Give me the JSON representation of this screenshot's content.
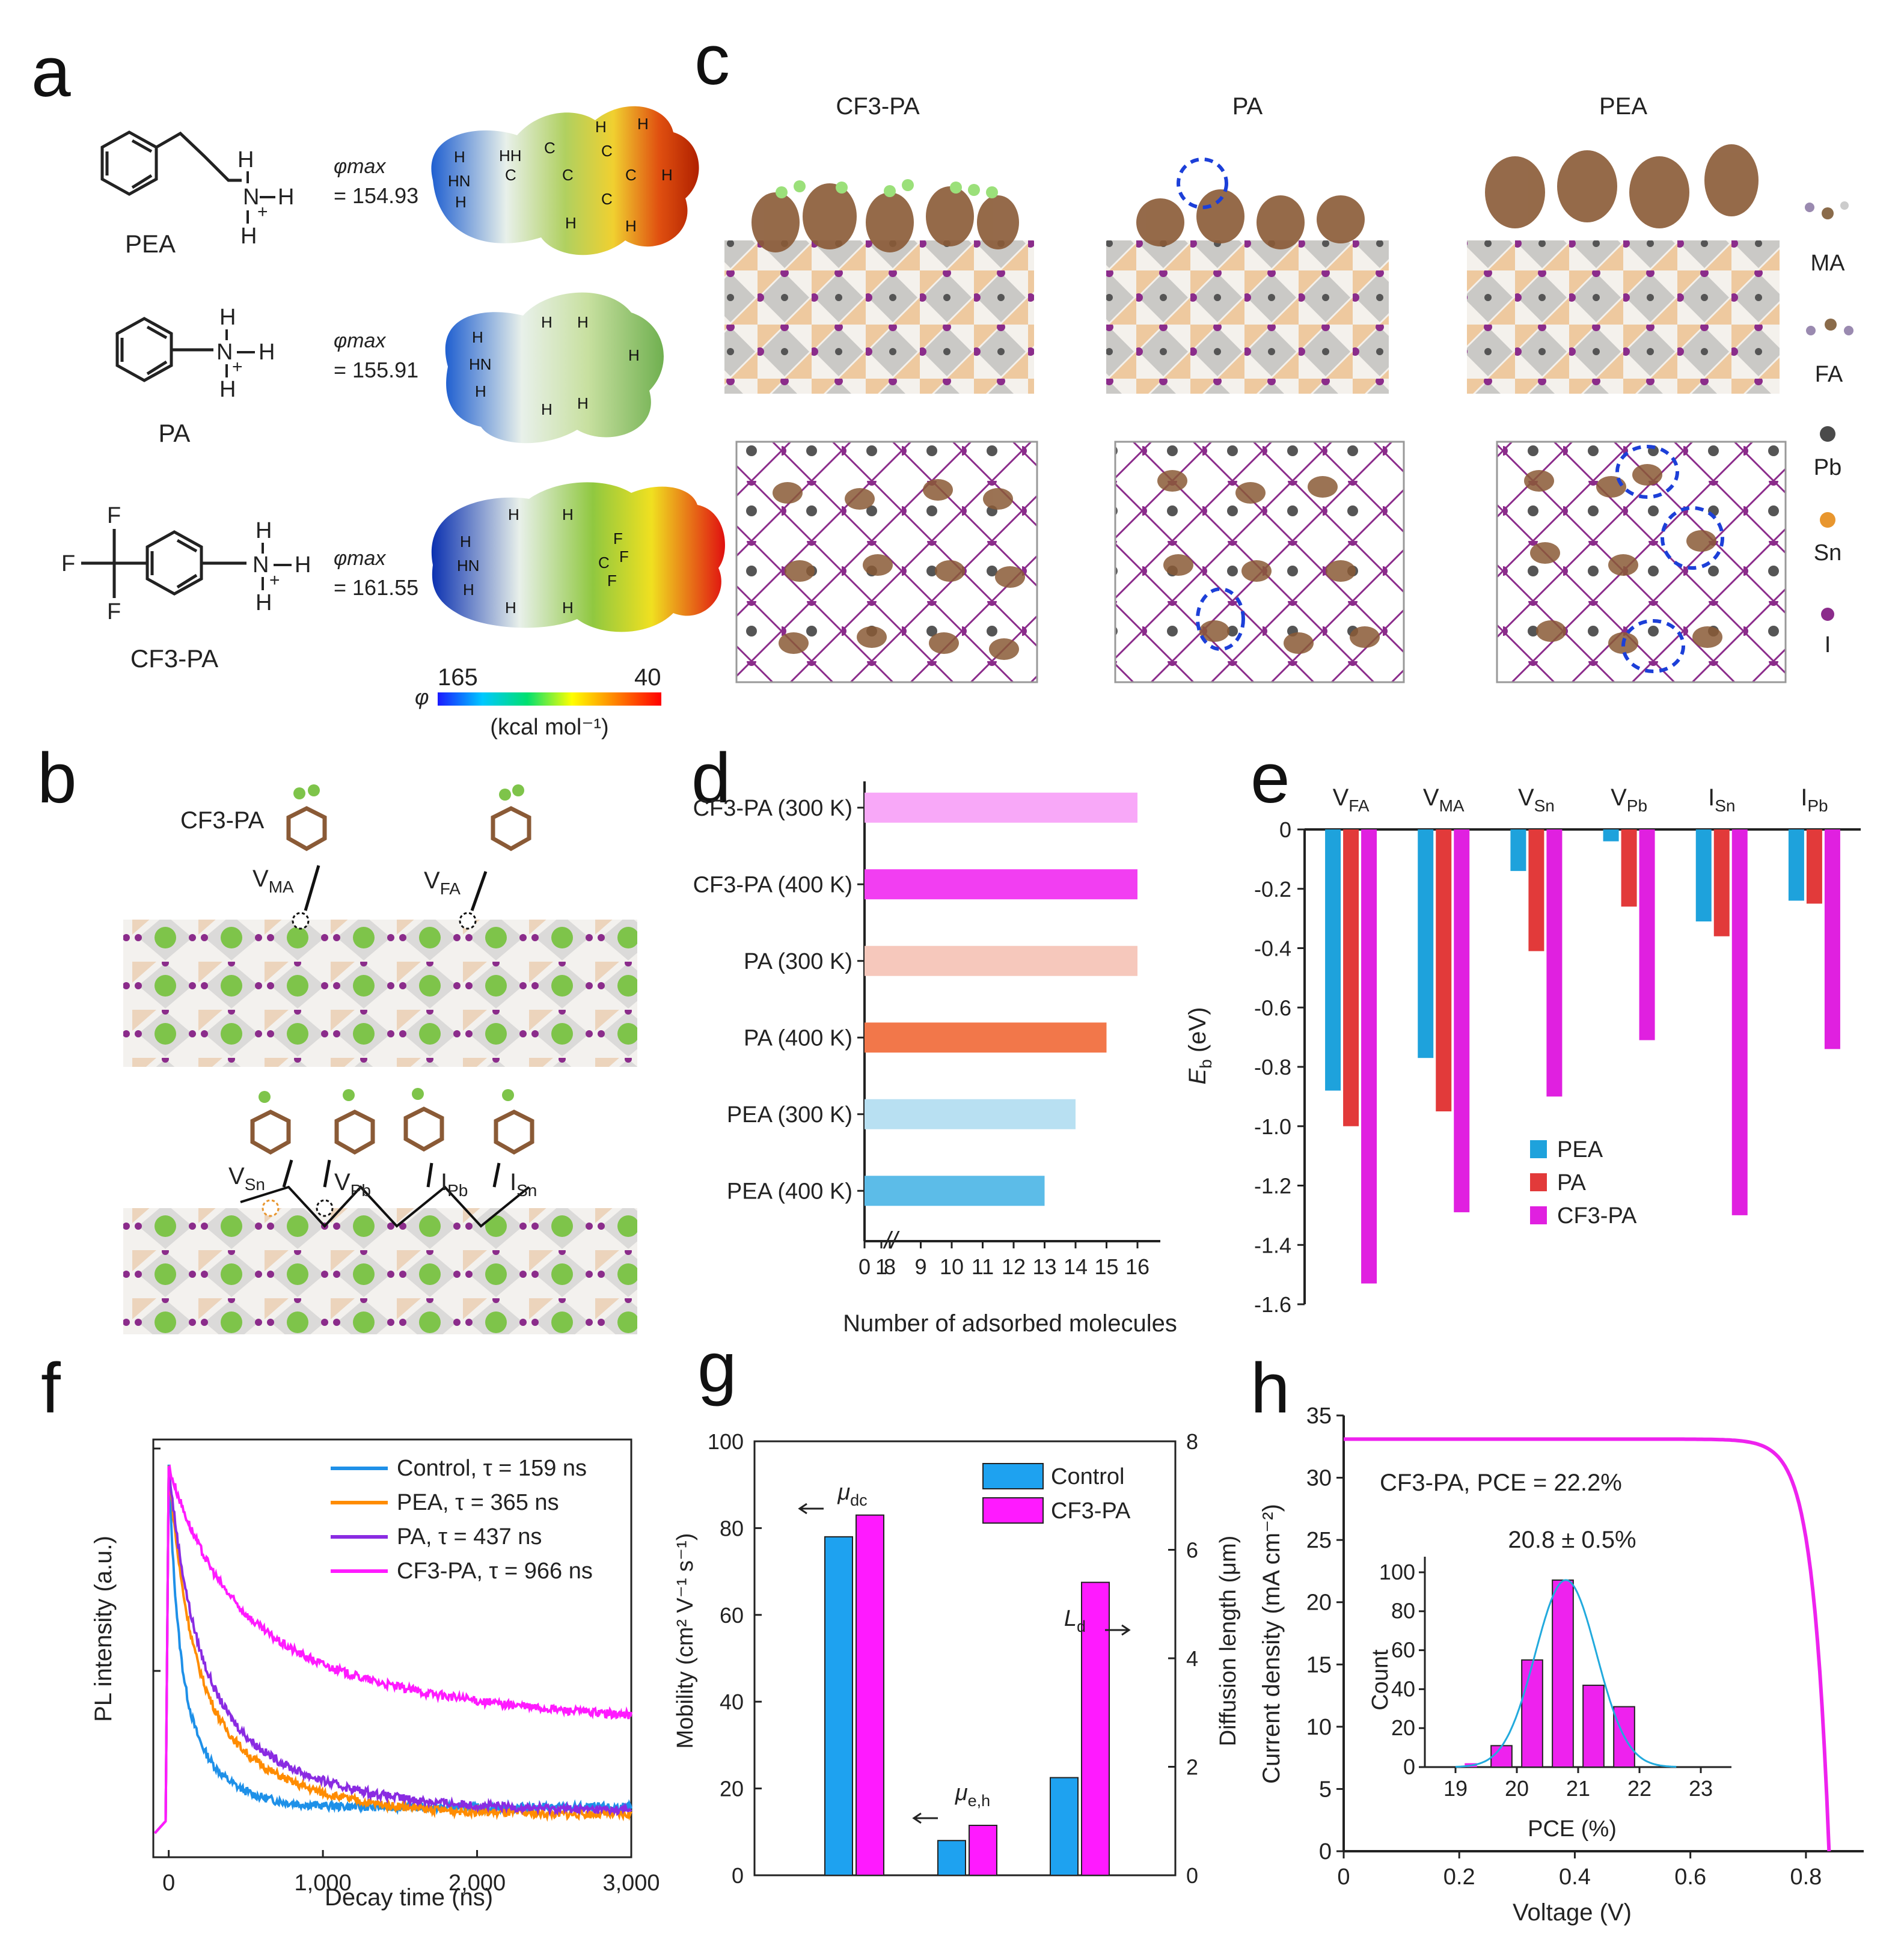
{
  "panels": {
    "a": {
      "label": "a",
      "molecules": [
        {
          "name": "PEA",
          "phi_label": "φmax",
          "phi_value": "= 154.93",
          "esp_atoms": [
            "H",
            "HN",
            "H",
            "HH",
            "C",
            "C",
            "H",
            "C",
            "C",
            "H",
            "C",
            "C",
            "H",
            "H",
            "H"
          ]
        },
        {
          "name": "PA",
          "phi_label": "φmax",
          "phi_value": "= 155.91",
          "esp_atoms": [
            "H",
            "HN",
            "H",
            "H",
            "H",
            "H",
            "H",
            "H"
          ]
        },
        {
          "name": "CF3-PA",
          "phi_label": "φmax",
          "phi_value": "= 161.55",
          "esp_atoms": [
            "H",
            "HN",
            "H",
            "H",
            "H",
            "F",
            "F",
            "C",
            "F",
            "H",
            "H"
          ]
        }
      ],
      "structure_atoms": {
        "H": "H",
        "N": "N",
        "plus": "+",
        "F": "F"
      },
      "colorbar": {
        "symbol": "φ",
        "min": "165",
        "max": "40",
        "unit": "(kcal mol⁻¹)",
        "colors": [
          "#1a1aff",
          "#00c8ff",
          "#00e070",
          "#ffff00",
          "#ff8000",
          "#ff0000"
        ]
      }
    },
    "b": {
      "label": "b",
      "molecule": "CF3-PA",
      "top_defects": [
        {
          "base": "V",
          "sub": "MA"
        },
        {
          "base": "V",
          "sub": "FA"
        }
      ],
      "bottom_defects": [
        {
          "base": "V",
          "sub": "Sn"
        },
        {
          "base": "V",
          "sub": "Pb"
        },
        {
          "base": "I",
          "sub": "Pb"
        },
        {
          "base": "I",
          "sub": "Sn"
        }
      ]
    },
    "c": {
      "label": "c",
      "columns": [
        "CF3-PA",
        "PA",
        "PEA"
      ],
      "legend": [
        {
          "name": "MA",
          "color": "#8a6b4a"
        },
        {
          "name": "FA",
          "color": "#9a8ab0"
        },
        {
          "name": "Pb",
          "color": "#4a4a4a"
        },
        {
          "name": "Sn",
          "color": "#e8962e"
        },
        {
          "name": "I",
          "color": "#8b2c8b"
        }
      ]
    },
    "d": {
      "label": "d",
      "chart_data": {
        "type": "bar",
        "orientation": "horizontal",
        "categories": [
          "CF3-PA (300 K)",
          "CF3-PA (400 K)",
          "PA (300 K)",
          "PA (400 K)",
          "PEA (300 K)",
          "PEA (400 K)"
        ],
        "values": [
          16,
          16,
          16,
          15,
          14,
          13
        ],
        "colors": [
          "#f8a8f8",
          "#f23ef2",
          "#f6c8bc",
          "#f2774a",
          "#b8e0f2",
          "#5cbce8"
        ],
        "xlabel": "Number of adsorbed molecules",
        "xticks": [
          "0",
          "1",
          "8",
          "9",
          "10",
          "11",
          "12",
          "13",
          "14",
          "15",
          "16"
        ],
        "axis_break": "//"
      }
    },
    "e": {
      "label": "e",
      "chart_data": {
        "type": "bar",
        "categories": [
          {
            "base": "V",
            "sub": "FA"
          },
          {
            "base": "V",
            "sub": "MA"
          },
          {
            "base": "V",
            "sub": "Sn"
          },
          {
            "base": "V",
            "sub": "Pb"
          },
          {
            "base": "I",
            "sub": "Sn"
          },
          {
            "base": "I",
            "sub": "Pb"
          }
        ],
        "series": [
          {
            "name": "PEA",
            "color": "#1ea2dc",
            "values": [
              -0.88,
              -0.77,
              -0.14,
              -0.04,
              -0.31,
              -0.24
            ]
          },
          {
            "name": "PA",
            "color": "#e23a3a",
            "values": [
              -1.0,
              -0.95,
              -0.41,
              -0.26,
              -0.36,
              -0.25
            ]
          },
          {
            "name": "CF3-PA",
            "color": "#e020e0",
            "values": [
              -1.53,
              -1.29,
              -0.9,
              -0.71,
              -1.3,
              -0.74
            ]
          }
        ],
        "ylabel": {
          "base": "E",
          "sub": "b",
          "unit": " (eV)"
        },
        "ylim": [
          -1.6,
          0
        ],
        "yticks": [
          "0",
          "-0.2",
          "-0.4",
          "-0.6",
          "-0.8",
          "-1.0",
          "-1.2",
          "-1.4",
          "-1.6"
        ],
        "legend_position": "bottom-left"
      }
    },
    "f": {
      "label": "f",
      "chart_data": {
        "type": "line",
        "xlabel": "Decay time (ns)",
        "ylabel": "PL intensity (a.u.)",
        "xlim": [
          -100,
          3000
        ],
        "xticks": [
          "0",
          "1,000",
          "2,000",
          "3,000"
        ],
        "series": [
          {
            "name": "Control, τ = 159 ns",
            "color": "#1e90e8",
            "tau_ns": 159,
            "end_value": 0.1
          },
          {
            "name": "PEA, τ = 365 ns",
            "color": "#ff8c00",
            "tau_ns": 365,
            "end_value": 0.08
          },
          {
            "name": "PA, τ = 437 ns",
            "color": "#8a2be2",
            "tau_ns": 437,
            "end_value": 0.09
          },
          {
            "name": "CF3-PA, τ = 966 ns",
            "color": "#ff1aff",
            "tau_ns": 966,
            "end_value": 0.31
          }
        ]
      }
    },
    "g": {
      "label": "g",
      "chart_data": {
        "type": "bar",
        "groups": [
          {
            "label": {
              "base": "μ",
              "sub": "dc"
            },
            "axis": "left",
            "values": [
              78,
              83
            ]
          },
          {
            "label": {
              "base": "μ",
              "sub": "e,h"
            },
            "axis": "left",
            "values": [
              8,
              11.5
            ]
          },
          {
            "label": {
              "base": "L",
              "sub": "d"
            },
            "axis": "right",
            "values": [
              1.8,
              5.4
            ]
          }
        ],
        "series": [
          {
            "name": "Control",
            "color": "#1ea2f0"
          },
          {
            "name": "CF3-PA",
            "color": "#ff1aff"
          }
        ],
        "ylabel_left": "Mobility (cm² V⁻¹ s⁻¹)",
        "ylabel_right": "Diffusion length (μm)",
        "ylim_left": [
          0,
          100
        ],
        "ylim_right": [
          0,
          8
        ],
        "yticks_left": [
          "0",
          "20",
          "40",
          "60",
          "80",
          "100"
        ],
        "yticks_right": [
          "0",
          "2",
          "4",
          "6",
          "8"
        ]
      }
    },
    "h": {
      "label": "h",
      "chart_data": {
        "type": "line",
        "xlabel": "Voltage (V)",
        "ylabel": "Current density (mA cm⁻²)",
        "xlim": [
          0,
          0.9
        ],
        "ylim": [
          0,
          35
        ],
        "xticks": [
          "0",
          "0.2",
          "0.4",
          "0.6",
          "0.8"
        ],
        "yticks": [
          "0",
          "5",
          "10",
          "15",
          "20",
          "25",
          "30",
          "35"
        ],
        "annotation": "CF3-PA, PCE = 22.2%",
        "color": "#ee22ee",
        "jsc": 33.1,
        "voc": 0.84,
        "inset": {
          "type": "bar",
          "title": "20.8 ± 0.5%",
          "xlabel": "PCE (%)",
          "ylabel": "Count",
          "xticks": [
            "19",
            "20",
            "21",
            "22",
            "23"
          ],
          "yticks": [
            "0",
            "20",
            "40",
            "60",
            "80",
            "100"
          ],
          "xlim": [
            18.5,
            23.5
          ],
          "ylim": [
            0,
            108
          ],
          "bin_centers": [
            19.75,
            20.25,
            20.75,
            21.25,
            21.75
          ],
          "counts": [
            11,
            55,
            96,
            42,
            31
          ],
          "fit_mean": 20.8,
          "fit_sd": 0.5,
          "bar_color": "#ee22ee",
          "fit_color": "#22aadd"
        }
      }
    }
  }
}
